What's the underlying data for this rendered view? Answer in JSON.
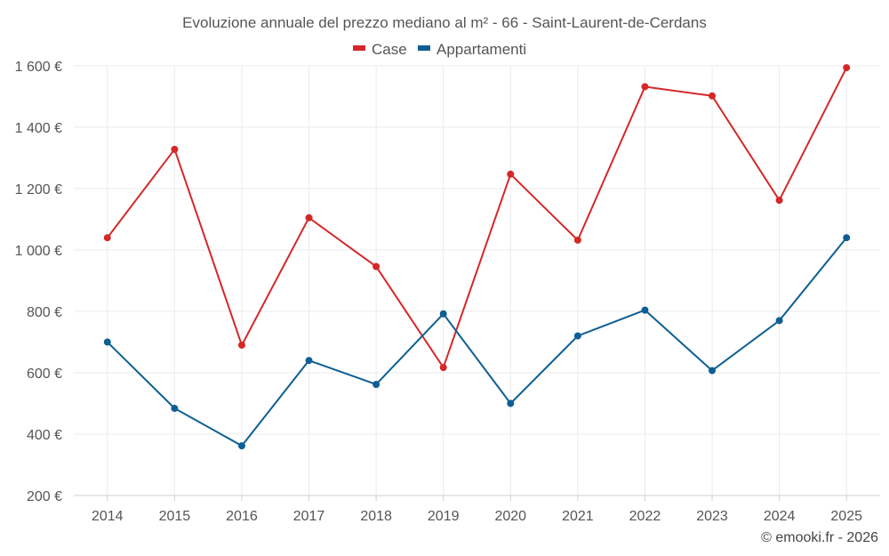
{
  "chart_data": {
    "type": "line",
    "title": "Evoluzione annuale del prezzo mediano al m² - 66 - Saint-Laurent-de-Cerdans",
    "categories": [
      "2014",
      "2015",
      "2016",
      "2017",
      "2018",
      "2019",
      "2020",
      "2021",
      "2022",
      "2023",
      "2024",
      "2025"
    ],
    "series": [
      {
        "name": "Case",
        "color": "#d62728",
        "values": [
          1040,
          1328,
          690,
          1105,
          946,
          617,
          1247,
          1032,
          1532,
          1502,
          1162,
          1594
        ]
      },
      {
        "name": "Appartamenti",
        "color": "#0e5f94",
        "values": [
          700,
          484,
          362,
          640,
          562,
          792,
          500,
          720,
          804,
          607,
          770,
          1040
        ]
      }
    ],
    "ylim": [
      200,
      1600
    ],
    "yticks": [
      200,
      400,
      600,
      800,
      1000,
      1200,
      1400,
      1600
    ],
    "ytick_labels": [
      "200 €",
      "400 €",
      "600 €",
      "800 €",
      "1 000 €",
      "1 200 €",
      "1 400 €",
      "1 600 €"
    ],
    "grid": true,
    "legend_position": "top-center",
    "xlabel": "",
    "ylabel": ""
  },
  "credit": "© emooki.fr - 2026"
}
